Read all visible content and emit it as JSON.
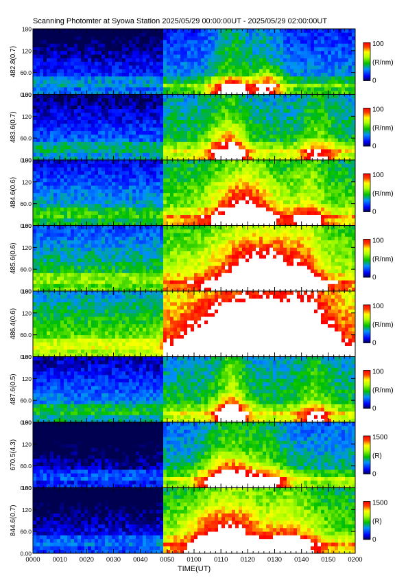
{
  "title": "Scanning Photomter at Syowa Station  2025/05/29 00:00:00UT - 2025/05/29 02:00:00UT",
  "xlabel": "TIME(UT)",
  "chart_data": {
    "type": "heatmap",
    "title": "Scanning Photomter at Syowa Station  2025/05/29 00:00:00UT - 2025/05/29 02:00:00UT",
    "xlabel": "TIME(UT)",
    "x_ticks": [
      "0000",
      "0010",
      "0020",
      "0030",
      "0040",
      "0050",
      "0100",
      "0110",
      "0120",
      "0130",
      "0140",
      "0150",
      "0200"
    ],
    "y_ticks": [
      "0.00",
      "60.0",
      "120",
      "180"
    ],
    "ylim": [
      0,
      180
    ],
    "panels": [
      {
        "ylabel": "482.8(0.7)",
        "cbar_max": "100",
        "cbar_min": "0",
        "cbar_unit": "(R/nm)",
        "base": 0.18,
        "post": 0.3,
        "bursts": [
          [
            0.72,
            0.44,
            0.45,
            0.05,
            0.3
          ],
          [
            0.61,
            0.62,
            0.3,
            0.06,
            0.4
          ]
        ]
      },
      {
        "ylabel": "483.6(0.7)",
        "cbar_max": "100",
        "cbar_min": "0",
        "cbar_unit": "(R/nm)",
        "base": 0.25,
        "post": 0.45,
        "bursts": [
          [
            0.6,
            0.46,
            0.6,
            0.06,
            0.35
          ],
          [
            0.88,
            0.33,
            0.35,
            0.05,
            0.3
          ]
        ]
      },
      {
        "ylabel": "484.6(0.6)",
        "cbar_max": "100",
        "cbar_min": "0",
        "cbar_unit": "(R/nm)",
        "base": 0.35,
        "post": 0.55,
        "bursts": [
          [
            0.65,
            0.52,
            0.8,
            0.1,
            0.55
          ],
          [
            0.85,
            0.35,
            0.35,
            0.05,
            0.3
          ]
        ]
      },
      {
        "ylabel": "485.6(0.6)",
        "cbar_max": "100",
        "cbar_min": "0",
        "cbar_unit": "(R/nm)",
        "base": 0.45,
        "post": 0.62,
        "bursts": [
          [
            0.7,
            0.6,
            0.9,
            0.14,
            0.7
          ],
          [
            0.84,
            0.38,
            0.4,
            0.05,
            0.35
          ]
        ]
      },
      {
        "ylabel": "486.4(0.6)",
        "cbar_max": "100",
        "cbar_min": "0",
        "cbar_unit": "(R/nm)",
        "base": 0.55,
        "post": 0.82,
        "bursts": [
          [
            0.68,
            0.68,
            1.0,
            0.18,
            0.9
          ],
          [
            0.85,
            0.5,
            0.55,
            0.08,
            0.45
          ]
        ]
      },
      {
        "ylabel": "487.6(0.5)",
        "cbar_max": "100",
        "cbar_min": "0",
        "cbar_unit": "(R/nm)",
        "base": 0.3,
        "post": 0.45,
        "bursts": [
          [
            0.61,
            0.58,
            0.45,
            0.05,
            0.4
          ],
          [
            0.87,
            0.35,
            0.35,
            0.05,
            0.3
          ]
        ]
      },
      {
        "ylabel": "670.5(4.3)",
        "cbar_max": "1500",
        "cbar_min": "0",
        "cbar_unit": "(R)",
        "base": 0.08,
        "post": 0.38,
        "bursts": [
          [
            0.6,
            0.62,
            0.55,
            0.08,
            0.45
          ],
          [
            0.72,
            0.42,
            0.4,
            0.07,
            0.3
          ]
        ]
      },
      {
        "ylabel": "844.6(0.7)",
        "cbar_max": "1500",
        "cbar_min": "0",
        "cbar_unit": "(R)",
        "base": 0.12,
        "post": 0.55,
        "bursts": [
          [
            0.6,
            0.6,
            0.75,
            0.12,
            0.5
          ],
          [
            0.8,
            0.4,
            0.5,
            0.08,
            0.4
          ]
        ]
      }
    ]
  }
}
